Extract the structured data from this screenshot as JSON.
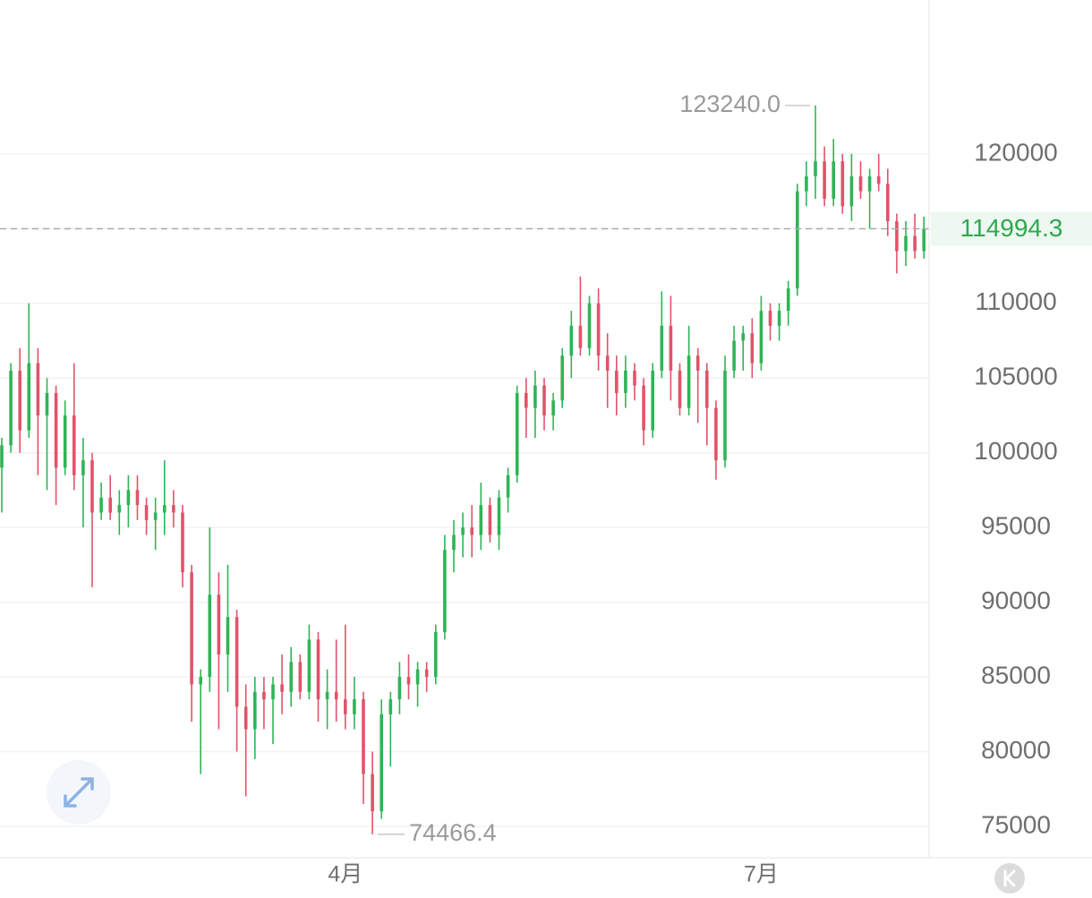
{
  "chart_data": {
    "type": "candlestick",
    "categories": [
      null,
      null,
      null,
      null,
      null,
      null,
      null,
      null,
      null,
      null,
      null,
      null,
      null,
      null,
      null,
      null,
      null,
      null,
      null,
      null,
      null,
      null,
      null,
      null,
      null,
      null,
      null,
      null,
      null,
      null,
      null,
      null,
      null,
      null,
      null,
      null,
      null,
      null,
      "4月",
      null,
      null,
      null,
      null,
      null,
      null,
      null,
      null,
      null,
      null,
      null,
      null,
      null,
      null,
      null,
      null,
      null,
      null,
      null,
      null,
      null,
      null,
      null,
      null,
      null,
      null,
      null,
      null,
      null,
      null,
      null,
      null,
      null,
      null,
      null,
      null,
      null,
      null,
      null,
      null,
      null,
      null,
      null,
      null,
      null,
      "7月",
      null,
      null,
      null,
      null,
      null,
      null,
      null,
      null,
      null,
      null,
      null,
      null,
      null,
      null,
      null,
      null,
      null,
      null
    ],
    "open": [
      99000,
      100500,
      105500,
      101500,
      106000,
      102500,
      104000,
      99000,
      102500,
      98500,
      99500,
      96000,
      97000,
      96000,
      96500,
      97500,
      96500,
      95500,
      96000,
      96500,
      96000,
      92000,
      84500,
      85000,
      90500,
      86500,
      89000,
      83000,
      81500,
      84000,
      83500,
      84500,
      84000,
      86000,
      84000,
      87500,
      83500,
      84000,
      83500,
      82500,
      83500,
      78500,
      76000,
      82500,
      83500,
      85000,
      84500,
      85500,
      85000,
      88000,
      93500,
      94500,
      95000,
      94500,
      96500,
      94500,
      97000,
      98500,
      104000,
      103000,
      104500,
      102500,
      103500,
      106500,
      108500,
      107000,
      110000,
      106500,
      105500,
      104000,
      105500,
      104500,
      101500,
      105500,
      108500,
      105500,
      103000,
      106500,
      105500,
      103000,
      99500,
      105500,
      107500,
      108000,
      106000,
      109500,
      108500,
      109500,
      111000,
      117500,
      118500,
      119500,
      117000,
      119500,
      116500,
      118500,
      117500,
      118500,
      118000,
      115500,
      113500,
      114500,
      113500
    ],
    "high": [
      101000,
      106000,
      107000,
      110000,
      107000,
      105000,
      104500,
      103500,
      106000,
      101000,
      100000,
      98000,
      98500,
      97500,
      98500,
      98500,
      97000,
      97000,
      99500,
      97500,
      96500,
      92500,
      85500,
      95000,
      92000,
      92500,
      89500,
      84500,
      85000,
      85000,
      85000,
      86500,
      87000,
      86500,
      88500,
      88000,
      85500,
      87500,
      88500,
      85000,
      84000,
      80000,
      83500,
      84000,
      86000,
      86500,
      86000,
      86000,
      88500,
      94500,
      95500,
      96000,
      96500,
      98000,
      97000,
      97500,
      99000,
      104500,
      105000,
      105500,
      105000,
      104000,
      107000,
      109500,
      111800,
      110500,
      111000,
      108000,
      106500,
      106500,
      106000,
      105000,
      106000,
      110800,
      110500,
      106000,
      108500,
      107000,
      106000,
      103500,
      106500,
      108500,
      108500,
      109000,
      110500,
      110000,
      110000,
      111500,
      118000,
      119500,
      123240,
      120500,
      121000,
      120000,
      120000,
      119500,
      119000,
      120000,
      119000,
      116000,
      115500,
      116000,
      115800
    ],
    "low": [
      96000,
      100000,
      100000,
      101000,
      98500,
      97500,
      96500,
      98500,
      97500,
      95000,
      91000,
      95500,
      95500,
      94500,
      95000,
      95500,
      94500,
      93500,
      94500,
      95000,
      91000,
      82000,
      78500,
      84000,
      81500,
      84000,
      80000,
      77000,
      79500,
      81500,
      80500,
      82500,
      83000,
      83500,
      83500,
      82000,
      81500,
      82000,
      81500,
      81500,
      76500,
      74466.4,
      75500,
      79000,
      82500,
      83500,
      83000,
      84000,
      84500,
      87500,
      92000,
      93000,
      93000,
      93500,
      94000,
      93500,
      96000,
      98000,
      101000,
      101000,
      101500,
      101500,
      103000,
      105000,
      106500,
      106500,
      105500,
      103000,
      102500,
      103000,
      103500,
      100500,
      101000,
      105000,
      103500,
      102500,
      102500,
      102000,
      100500,
      98200,
      99000,
      105000,
      105500,
      105000,
      105500,
      107500,
      107500,
      108500,
      110500,
      116500,
      117000,
      116500,
      116500,
      116000,
      115500,
      117000,
      115000,
      117500,
      114500,
      112000,
      112500,
      113000,
      113000
    ],
    "close": [
      100500,
      105500,
      101500,
      106000,
      102500,
      104000,
      99000,
      102500,
      98500,
      99500,
      96000,
      97000,
      96000,
      96500,
      97500,
      96500,
      95500,
      96000,
      96500,
      96000,
      92000,
      84500,
      85000,
      90500,
      86500,
      89000,
      83000,
      81500,
      84000,
      83500,
      84500,
      84000,
      86000,
      84000,
      87500,
      83500,
      84000,
      83500,
      82500,
      83500,
      78500,
      76000,
      82500,
      83500,
      85000,
      84500,
      85500,
      85000,
      88000,
      93500,
      94500,
      95000,
      94500,
      96500,
      94500,
      97000,
      98500,
      104000,
      103000,
      104500,
      102500,
      103500,
      106500,
      108500,
      107000,
      110000,
      106500,
      105500,
      104000,
      105500,
      104500,
      101500,
      105500,
      108500,
      105500,
      103000,
      106500,
      105500,
      103000,
      99500,
      105500,
      107500,
      108000,
      106000,
      109500,
      108500,
      109500,
      111000,
      117500,
      118500,
      119500,
      117000,
      119500,
      116500,
      118500,
      117500,
      118500,
      118000,
      115500,
      113500,
      114500,
      113500,
      114994.3
    ],
    "up_color": "#2fb457",
    "down_color": "#e0546a",
    "ylim": [
      72900,
      130300
    ],
    "yticks": [
      75000,
      80000,
      85000,
      90000,
      95000,
      100000,
      105000,
      110000,
      115000,
      120000
    ],
    "grid": true,
    "max_label": {
      "value": 123240,
      "label": "123240.0"
    },
    "min_label": 74466.4,
    "last_price": 114994.3
  }
}
